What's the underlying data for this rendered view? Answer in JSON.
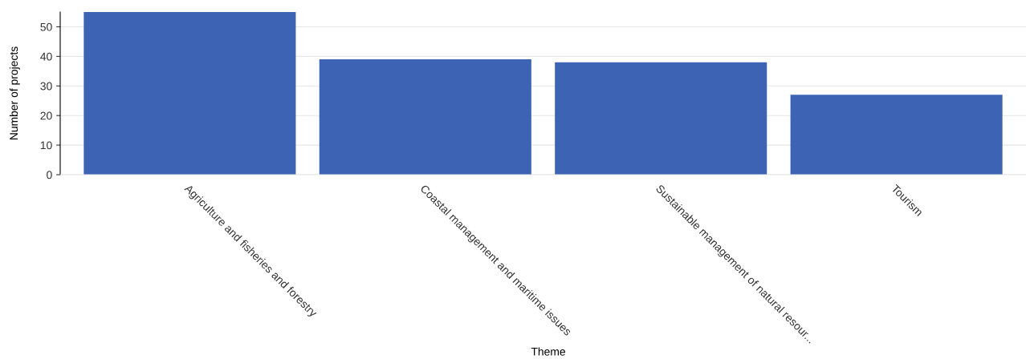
{
  "chart_data": {
    "type": "bar",
    "xlabel": "Theme",
    "ylabel": "Number of projects",
    "categories": [
      "Agriculture and fisheries and forestry",
      "Coastal management and maritime issues",
      "Sustainable management of natural resour...",
      "Tourism"
    ],
    "values": [
      55,
      39,
      38,
      27
    ],
    "color": "#3d64b4",
    "ylim": [
      0,
      55
    ],
    "yticks": [
      0,
      10,
      20,
      30,
      40,
      50
    ],
    "grid": "y"
  }
}
